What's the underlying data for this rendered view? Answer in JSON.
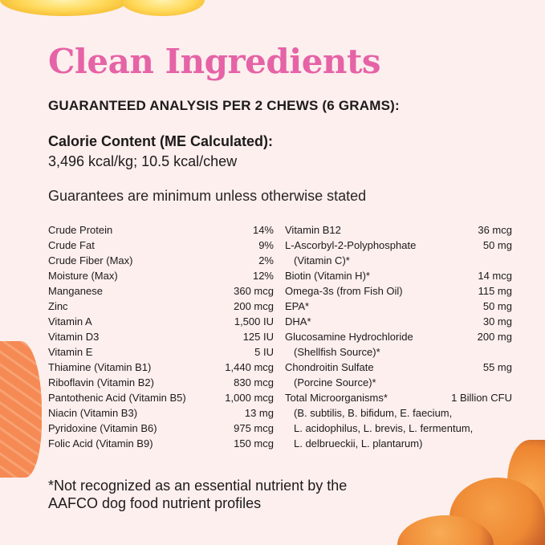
{
  "title": "Clean Ingredients",
  "heading": "GUARANTEED ANALYSIS PER 2 CHEWS (6 GRAMS):",
  "calorie": {
    "label": "Calorie Content (ME Calculated):",
    "value": "3,496 kcal/kg; 10.5 kcal/chew"
  },
  "guarantees_note": "Guarantees are minimum unless otherwise stated",
  "left_items": [
    {
      "name": "Crude Protein",
      "value": "14%"
    },
    {
      "name": "Crude Fat",
      "value": "9%"
    },
    {
      "name": "Crude Fiber (Max)",
      "value": "2%"
    },
    {
      "name": "Moisture (Max)",
      "value": "12%"
    },
    {
      "name": "Manganese",
      "value": "360 mcg"
    },
    {
      "name": "Zinc",
      "value": "200 mcg"
    },
    {
      "name": "Vitamin A",
      "value": "1,500 IU"
    },
    {
      "name": "Vitamin D3",
      "value": "125 IU"
    },
    {
      "name": "Vitamin E",
      "value": "5 IU"
    },
    {
      "name": "Thiamine (Vitamin B1)",
      "value": "1,440 mcg"
    },
    {
      "name": "Riboflavin (Vitamin B2)",
      "value": "830 mcg"
    },
    {
      "name": "Pantothenic Acid (Vitamin B5)",
      "value": "1,000 mcg"
    },
    {
      "name": "Niacin (Vitamin B3)",
      "value": "13 mg"
    },
    {
      "name": "Pyridoxine (Vitamin B6)",
      "value": "975 mcg"
    },
    {
      "name": "Folic Acid (Vitamin B9)",
      "value": "150 mcg"
    }
  ],
  "right_items": [
    {
      "name": "Vitamin B12",
      "value": "36 mcg",
      "sub": []
    },
    {
      "name": "L-Ascorbyl-2-Polyphosphate",
      "value": "50 mg",
      "sub": [
        "(Vitamin C)*"
      ]
    },
    {
      "name": "Biotin (Vitamin H)*",
      "value": "14 mcg",
      "sub": []
    },
    {
      "name": "Omega-3s (from Fish Oil)",
      "value": "115 mg",
      "sub": []
    },
    {
      "name": "EPA*",
      "value": "50 mg",
      "sub": []
    },
    {
      "name": "DHA*",
      "value": "30 mg",
      "sub": []
    },
    {
      "name": "Glucosamine Hydrochloride",
      "value": "200 mg",
      "sub": [
        "(Shellfish Source)*"
      ]
    },
    {
      "name": "Chondroitin Sulfate",
      "value": "55 mg",
      "sub": [
        "(Porcine Source)*"
      ]
    },
    {
      "name": "Total Microorganisms*",
      "value": "1 Billion CFU",
      "sub": [
        "(B. subtilis, B. bifidum, E. faecium,",
        "L. acidophilus, L. brevis, L. fermentum,",
        "L. delbrueckii, L. plantarum)"
      ]
    }
  ],
  "footnote": [
    "*Not recognized as an essential nutrient by the",
    "AAFCO dog food nutrient profiles"
  ],
  "colors": {
    "background": "#fcefee",
    "title": "#e563a6",
    "text": "#1e1a1a"
  }
}
